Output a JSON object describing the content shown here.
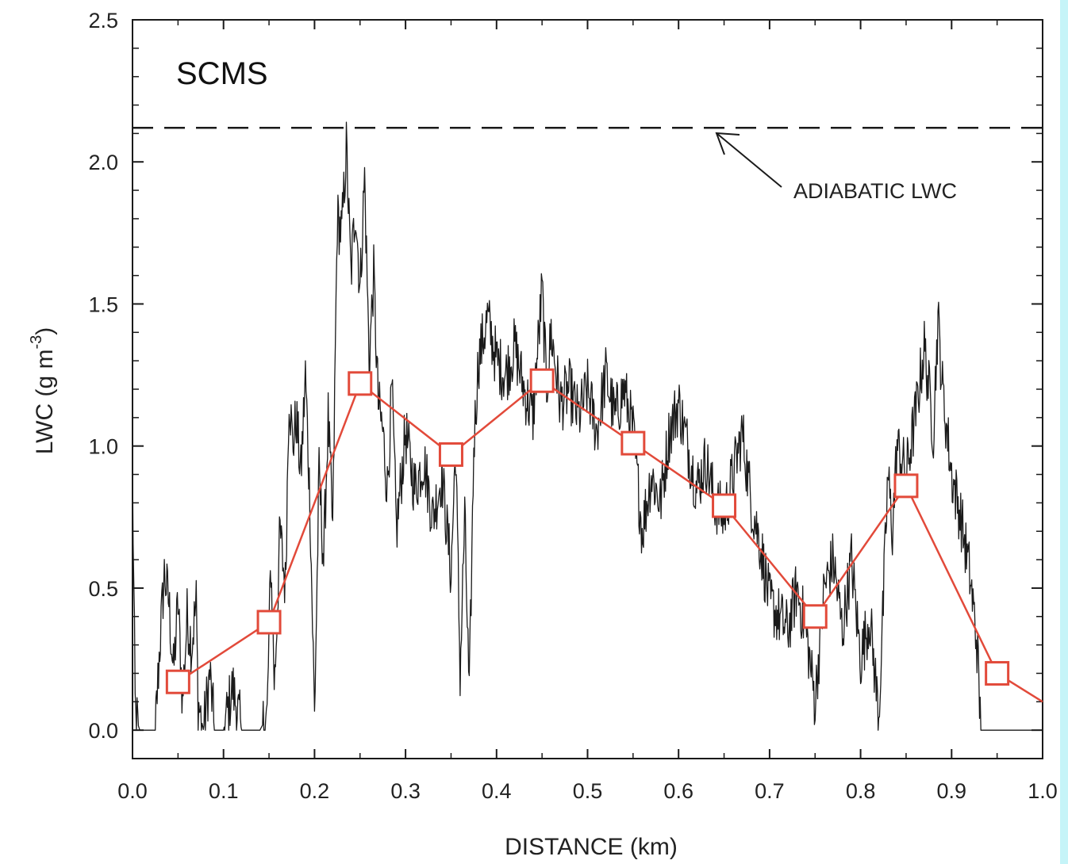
{
  "chart_data": {
    "type": "line",
    "title": "",
    "panel_label": "SCMS",
    "xlabel": "DISTANCE (km)",
    "ylabel": "LWC (g m",
    "ylabel_exponent": "-3",
    "ylabel_close": ")",
    "xlim": [
      0.0,
      1.0
    ],
    "ylim": [
      -0.1,
      2.5
    ],
    "x_ticks": [
      0.0,
      0.1,
      0.2,
      0.3,
      0.4,
      0.5,
      0.6,
      0.7,
      0.8,
      0.9,
      1.0
    ],
    "x_tick_labels": [
      "0.0",
      "0.1",
      "0.2",
      "0.3",
      "0.4",
      "0.5",
      "0.6",
      "0.7",
      "0.8",
      "0.9",
      "1.0"
    ],
    "y_ticks": [
      0.0,
      0.5,
      1.0,
      1.5,
      2.0,
      2.5
    ],
    "y_tick_labels": [
      "0.0",
      "0.5",
      "1.0",
      "1.5",
      "2.0",
      "2.5"
    ],
    "grid": false,
    "reference_line": {
      "label": "ADIABATIC LWC",
      "y": 2.12
    },
    "series": [
      {
        "style": "black-trace",
        "color": "#1a1a1a",
        "x": [
          0.0,
          0.003,
          0.008,
          0.025,
          0.03,
          0.035,
          0.04,
          0.045,
          0.05,
          0.055,
          0.06,
          0.065,
          0.07,
          0.072,
          0.078,
          0.085,
          0.09,
          0.1,
          0.11,
          0.12,
          0.13,
          0.14,
          0.148,
          0.152,
          0.156,
          0.162,
          0.168,
          0.172,
          0.176,
          0.18,
          0.185,
          0.19,
          0.195,
          0.2,
          0.205,
          0.21,
          0.215,
          0.22,
          0.225,
          0.23,
          0.235,
          0.24,
          0.245,
          0.25,
          0.255,
          0.26,
          0.265,
          0.27,
          0.275,
          0.28,
          0.285,
          0.29,
          0.3,
          0.31,
          0.32,
          0.33,
          0.34,
          0.35,
          0.355,
          0.36,
          0.365,
          0.37,
          0.375,
          0.38,
          0.39,
          0.4,
          0.41,
          0.42,
          0.43,
          0.44,
          0.45,
          0.455,
          0.46,
          0.47,
          0.48,
          0.49,
          0.5,
          0.51,
          0.52,
          0.53,
          0.54,
          0.55,
          0.56,
          0.57,
          0.58,
          0.59,
          0.6,
          0.61,
          0.62,
          0.63,
          0.64,
          0.65,
          0.66,
          0.67,
          0.68,
          0.69,
          0.7,
          0.71,
          0.72,
          0.73,
          0.74,
          0.75,
          0.76,
          0.77,
          0.78,
          0.79,
          0.8,
          0.81,
          0.82,
          0.825,
          0.83,
          0.835,
          0.84,
          0.85,
          0.86,
          0.87,
          0.88,
          0.885,
          0.89,
          0.9,
          0.91,
          0.92,
          0.928,
          0.932,
          0.94,
          0.96,
          0.98,
          1.0
        ],
        "y": [
          0.9,
          0.05,
          0.0,
          0.0,
          0.3,
          0.55,
          0.45,
          0.2,
          0.45,
          0.1,
          0.4,
          0.3,
          0.45,
          0.1,
          0.0,
          0.2,
          0.0,
          0.0,
          0.15,
          0.0,
          0.0,
          0.0,
          0.05,
          0.6,
          0.15,
          0.7,
          0.5,
          1.2,
          1.0,
          1.1,
          0.9,
          1.25,
          0.8,
          0.05,
          0.9,
          0.6,
          1.1,
          0.7,
          1.8,
          1.75,
          2.05,
          1.6,
          1.85,
          1.55,
          1.95,
          1.3,
          1.6,
          1.15,
          1.05,
          0.85,
          1.2,
          0.7,
          1.05,
          0.85,
          0.95,
          0.75,
          0.9,
          0.55,
          1.0,
          0.2,
          0.75,
          0.1,
          1.0,
          1.3,
          1.45,
          1.3,
          1.25,
          1.35,
          1.2,
          1.1,
          1.55,
          1.2,
          1.4,
          1.15,
          1.2,
          1.1,
          1.2,
          1.05,
          1.25,
          1.1,
          1.2,
          1.05,
          0.7,
          0.9,
          0.8,
          1.05,
          1.15,
          1.0,
          0.85,
          0.95,
          0.8,
          0.75,
          0.9,
          1.05,
          0.8,
          0.65,
          0.45,
          0.4,
          0.35,
          0.5,
          0.35,
          0.1,
          0.5,
          0.6,
          0.35,
          0.6,
          0.25,
          0.4,
          0.05,
          0.45,
          0.9,
          0.7,
          1.0,
          0.9,
          1.1,
          1.35,
          1.05,
          1.45,
          1.2,
          0.9,
          0.75,
          0.55,
          0.3,
          0.0,
          0.0,
          0.0,
          0.0,
          0.0
        ]
      },
      {
        "style": "red-markers",
        "color": "#e24a3a",
        "marker": "square",
        "x": [
          0.05,
          0.15,
          0.25,
          0.35,
          0.45,
          0.55,
          0.65,
          0.75,
          0.85,
          0.95,
          1.0
        ],
        "y": [
          0.17,
          0.38,
          1.22,
          0.97,
          1.23,
          1.01,
          0.79,
          0.4,
          0.86,
          0.2,
          0.1
        ]
      }
    ]
  },
  "colors": {
    "background": "#ffffff",
    "edge_strip": "#c6f4f8",
    "frame": "#1a1a1a"
  }
}
